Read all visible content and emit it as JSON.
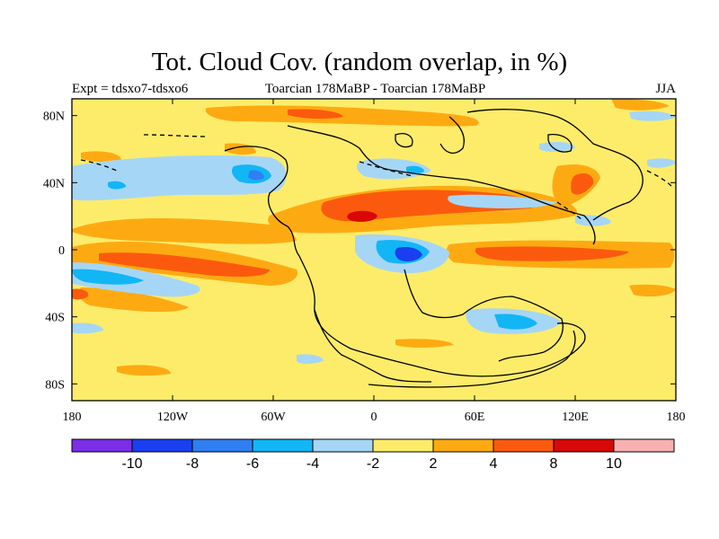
{
  "title": "Tot. Cloud Cov. (random overlap, in %)",
  "subtitle_left": "Expt = tdsxo7-tdsxo6",
  "subtitle_center": "Toarcian 178MaBP - Toarcian 178MaBP",
  "subtitle_right": "JJA",
  "x_ticks": [
    "180",
    "120W",
    "60W",
    "0",
    "60E",
    "120E",
    "180"
  ],
  "y_ticks": [
    "80N",
    "40N",
    "0",
    "40S",
    "80S"
  ],
  "colorbar": {
    "colors": [
      "#7b2ee6",
      "#1a3ff0",
      "#2f7ff2",
      "#12b6f5",
      "#a6d6f5",
      "#fdec6a",
      "#fdaa12",
      "#fb5a0e",
      "#d80808",
      "#f9b0b0"
    ],
    "labels": [
      "-10",
      "-8",
      "-6",
      "-4",
      "-2",
      "2",
      "4",
      "8",
      "10"
    ]
  },
  "map": {
    "background_color": "#fdec6a",
    "lon_range": [
      -180,
      180
    ],
    "lat_range": [
      -90,
      90
    ]
  }
}
